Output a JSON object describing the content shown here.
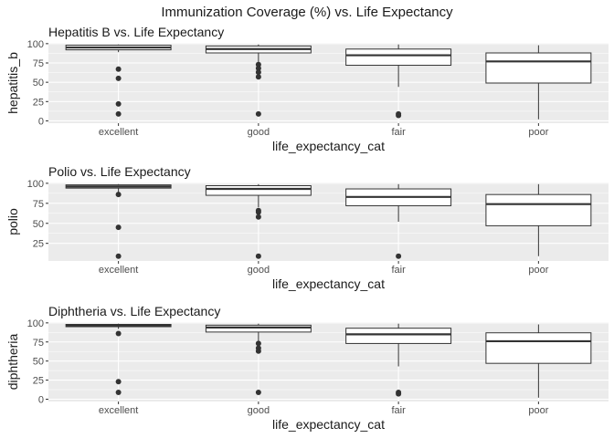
{
  "figure_title": "Immunization Coverage (%) vs. Life Expectancy",
  "colors": {
    "panel_bg": "#ebebeb",
    "grid_major": "#ffffff",
    "box_fill": "#ffffff",
    "box_line": "#333333",
    "text": "#1a1a1a",
    "tick_text": "#4d4d4d",
    "outlier": "#333333"
  },
  "chart_data": [
    {
      "type": "boxplot",
      "title": "Hepatitis B vs. Life Expectancy",
      "xlabel": "life_expectancy_cat",
      "ylabel": "hepatitis_b",
      "categories": [
        "excellent",
        "good",
        "fair",
        "poor"
      ],
      "ylim": [
        -3,
        101
      ],
      "yticks": [
        0,
        25,
        50,
        75,
        100
      ],
      "grid": true,
      "boxes": [
        {
          "category": "excellent",
          "lower_whisker": 89,
          "q1": 92,
          "median": 95,
          "q3": 98,
          "upper_whisker": 99,
          "outliers": [
            67,
            55,
            22,
            9
          ]
        },
        {
          "category": "good",
          "lower_whisker": 76,
          "q1": 88,
          "median": 93,
          "q3": 97,
          "upper_whisker": 99,
          "outliers": [
            73,
            68,
            63,
            57,
            9
          ]
        },
        {
          "category": "fair",
          "lower_whisker": 44,
          "q1": 72,
          "median": 85,
          "q3": 93,
          "upper_whisker": 99,
          "outliers": [
            9,
            7
          ]
        },
        {
          "category": "poor",
          "lower_whisker": 2,
          "q1": 49,
          "median": 77,
          "q3": 88,
          "upper_whisker": 98,
          "outliers": []
        }
      ]
    },
    {
      "type": "boxplot",
      "title": "Polio vs. Life Expectancy",
      "xlabel": "life_expectancy_cat",
      "ylabel": "polio",
      "categories": [
        "excellent",
        "good",
        "fair",
        "poor"
      ],
      "ylim": [
        3,
        101
      ],
      "yticks": [
        25,
        50,
        75,
        100
      ],
      "grid": true,
      "boxes": [
        {
          "category": "excellent",
          "lower_whisker": 89,
          "q1": 94,
          "median": 96,
          "q3": 98,
          "upper_whisker": 99,
          "outliers": [
            86,
            45,
            9
          ]
        },
        {
          "category": "good",
          "lower_whisker": 70,
          "q1": 85,
          "median": 93,
          "q3": 97,
          "upper_whisker": 99,
          "outliers": [
            66,
            64,
            58,
            9
          ]
        },
        {
          "category": "fair",
          "lower_whisker": 52,
          "q1": 72,
          "median": 83,
          "q3": 93,
          "upper_whisker": 99,
          "outliers": [
            9
          ]
        },
        {
          "category": "poor",
          "lower_whisker": 9,
          "q1": 47,
          "median": 74,
          "q3": 86,
          "upper_whisker": 99,
          "outliers": []
        }
      ]
    },
    {
      "type": "boxplot",
      "title": "Diphtheria vs. Life Expectancy",
      "xlabel": "life_expectancy_cat",
      "ylabel": "diphtheria",
      "categories": [
        "excellent",
        "good",
        "fair",
        "poor"
      ],
      "ylim": [
        -3,
        101
      ],
      "yticks": [
        0,
        25,
        50,
        75,
        100
      ],
      "grid": true,
      "boxes": [
        {
          "category": "excellent",
          "lower_whisker": 92,
          "q1": 95,
          "median": 97,
          "q3": 98,
          "upper_whisker": 99,
          "outliers": [
            86,
            23,
            9
          ]
        },
        {
          "category": "good",
          "lower_whisker": 73,
          "q1": 88,
          "median": 94,
          "q3": 97,
          "upper_whisker": 99,
          "outliers": [
            73,
            67,
            63,
            9
          ]
        },
        {
          "category": "fair",
          "lower_whisker": 43,
          "q1": 73,
          "median": 85,
          "q3": 93,
          "upper_whisker": 99,
          "outliers": [
            9,
            7
          ]
        },
        {
          "category": "poor",
          "lower_whisker": 2,
          "q1": 47,
          "median": 76,
          "q3": 87,
          "upper_whisker": 98,
          "outliers": []
        }
      ]
    }
  ]
}
